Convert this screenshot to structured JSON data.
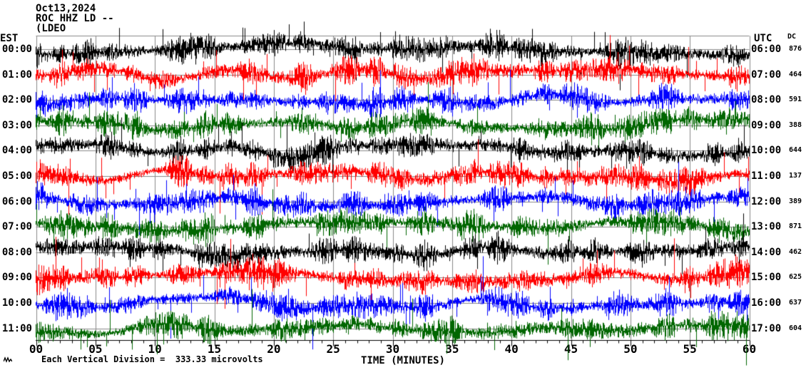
{
  "header": {
    "date": "Oct13,2024",
    "station": "ROC HHZ LD --",
    "network": "(LDEO"
  },
  "axes": {
    "left_header": "EST",
    "right_header": "UTC",
    "dc_header": "DC",
    "xlabel": "TIME (MINUTES)",
    "xtick_labels": [
      "00",
      "05",
      "10",
      "15",
      "20",
      "25",
      "30",
      "35",
      "40",
      "45",
      "50",
      "55",
      "60"
    ]
  },
  "footer": {
    "scale_note": "Each Vertical Division =  333.33 microvolts"
  },
  "colors": {
    "black": "#000000",
    "red": "#ff0000",
    "blue": "#0000ff",
    "green": "#006600",
    "grid": "#888888",
    "axis": "#000000"
  },
  "chart_data": {
    "type": "line",
    "subtype": "helicorder-seismogram",
    "x_range_minutes": [
      0,
      60
    ],
    "x_tick_interval_minutes": 5,
    "x_minor_tick_interval_minutes": 1,
    "vertical_division_microvolts": 333.33,
    "grid": "vertical gray lines every 5 minutes, gray baseline per trace row",
    "legend_position": "none",
    "rows": [
      {
        "est": "00:00",
        "utc": "06:00",
        "dc": 876,
        "color": "black"
      },
      {
        "est": "01:00",
        "utc": "07:00",
        "dc": 464,
        "color": "red"
      },
      {
        "est": "02:00",
        "utc": "08:00",
        "dc": 591,
        "color": "blue"
      },
      {
        "est": "03:00",
        "utc": "09:00",
        "dc": 388,
        "color": "green"
      },
      {
        "est": "04:00",
        "utc": "10:00",
        "dc": 644,
        "color": "black"
      },
      {
        "est": "05:00",
        "utc": "11:00",
        "dc": 137,
        "color": "red"
      },
      {
        "est": "06:00",
        "utc": "12:00",
        "dc": 389,
        "color": "blue"
      },
      {
        "est": "07:00",
        "utc": "13:00",
        "dc": 871,
        "color": "green"
      },
      {
        "est": "08:00",
        "utc": "14:00",
        "dc": 462,
        "color": "black"
      },
      {
        "est": "09:00",
        "utc": "15:00",
        "dc": 625,
        "color": "red"
      },
      {
        "est": "10:00",
        "utc": "16:00",
        "dc": 637,
        "color": "blue"
      },
      {
        "est": "11:00",
        "utc": "17:00",
        "dc": 604,
        "color": "green"
      }
    ]
  }
}
